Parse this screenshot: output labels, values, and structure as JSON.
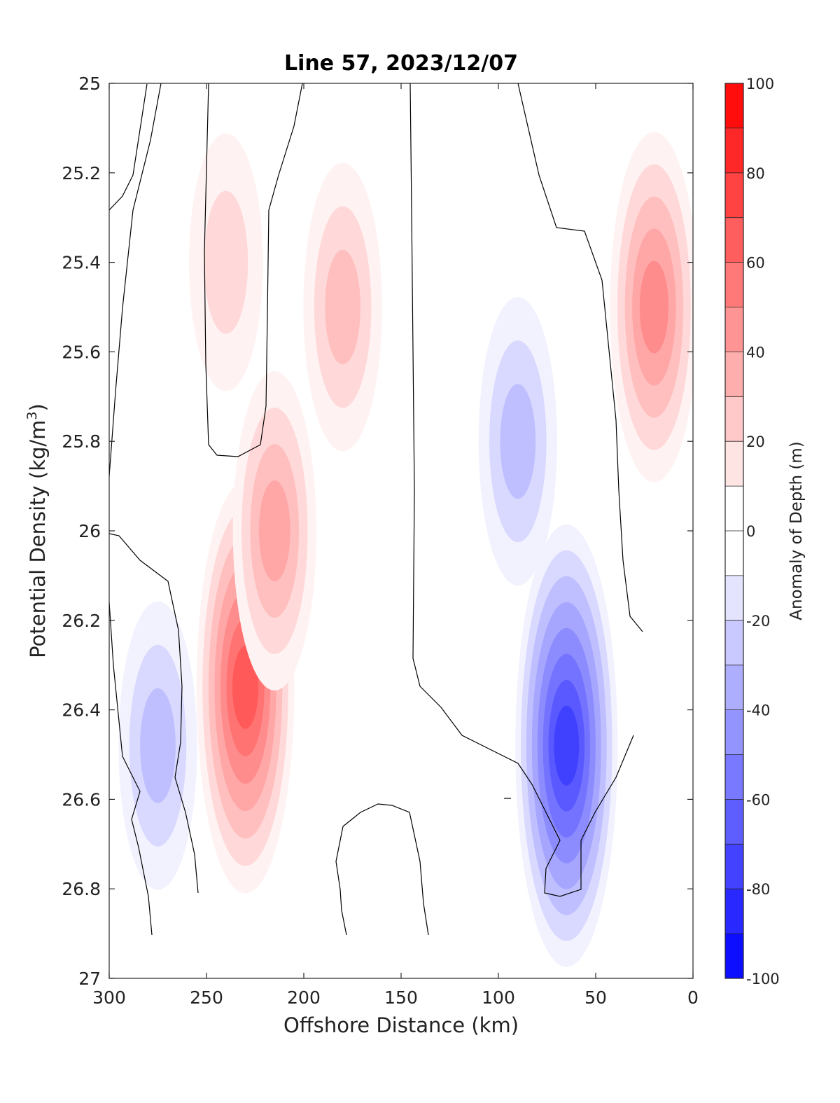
{
  "chart_data": {
    "type": "contour",
    "title": "Line 57, 2023/12/07",
    "xlabel": "Offshore Distance (km)",
    "ylabel_text": "Potential Density (kg/m",
    "ylabel_sup": "3",
    "ylabel_close": ")",
    "xlim": [
      300,
      0
    ],
    "ylim": [
      25,
      27
    ],
    "y_reversed": true,
    "x_reversed": true,
    "xticks": [
      300,
      250,
      200,
      150,
      100,
      50,
      0
    ],
    "yticks": [
      25,
      25.2,
      25.4,
      25.6,
      25.8,
      26,
      26.2,
      26.4,
      26.6,
      26.8,
      27
    ],
    "ytick_labels": [
      "25",
      "25.2",
      "25.4",
      "25.6",
      "25.8",
      "26",
      "26.2",
      "26.4",
      "26.6",
      "26.8",
      "27"
    ],
    "colorbar": {
      "label": "Anomaly of Depth (m)",
      "range": [
        -100,
        100
      ],
      "step": 10,
      "ticks": [
        100,
        80,
        60,
        40,
        20,
        0,
        -20,
        -40,
        -60,
        -80,
        -100
      ],
      "neg_color": "#0000ff",
      "pos_color": "#ff0000",
      "zero_color": "#ffffff"
    },
    "features": [
      {
        "type": "positive",
        "description": "anomaly max",
        "x": 230,
        "y": 26.35,
        "value": 70
      },
      {
        "type": "positive",
        "x": 180,
        "y": 25.5,
        "value": 30
      },
      {
        "type": "positive",
        "x": 215,
        "y": 26.0,
        "value": 40
      },
      {
        "type": "positive",
        "x": 240,
        "y": 25.4,
        "value": 20
      },
      {
        "type": "positive",
        "x": 20,
        "y": 25.5,
        "value": 50
      },
      {
        "type": "negative",
        "x": 65,
        "y": 26.48,
        "value": -80
      },
      {
        "type": "negative",
        "x": 90,
        "y": 25.8,
        "value": -30
      },
      {
        "type": "negative",
        "x": 275,
        "y": 26.48,
        "value": -30
      }
    ]
  }
}
